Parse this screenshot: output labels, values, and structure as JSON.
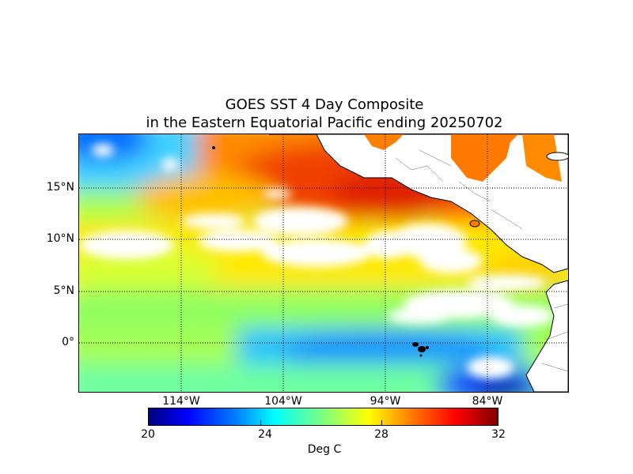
{
  "title": {
    "line1": "GOES SST 4 Day Composite",
    "line2": "in the Eastern Equatorial Pacific ending 20250702"
  },
  "map": {
    "lat_labels": [
      "15°N",
      "10°N",
      "5°N",
      "0°"
    ],
    "lon_labels": [
      "114°W",
      "104°W",
      "94°W",
      "84°W"
    ],
    "gridlines": "dotted",
    "land_color": "#ffffff",
    "coastline_color": "#000000"
  },
  "colorbar": {
    "ticks": [
      "20",
      "24",
      "28",
      "32"
    ],
    "label": "Deg C",
    "colormap": "jet",
    "min": 20,
    "max": 32
  },
  "colors": {
    "hot": "#e02000",
    "warm": "#ff7a00",
    "mild": "#ffe000",
    "cool": "#7fff7f",
    "cold": "#00bfff",
    "coldest": "#0000c0"
  }
}
